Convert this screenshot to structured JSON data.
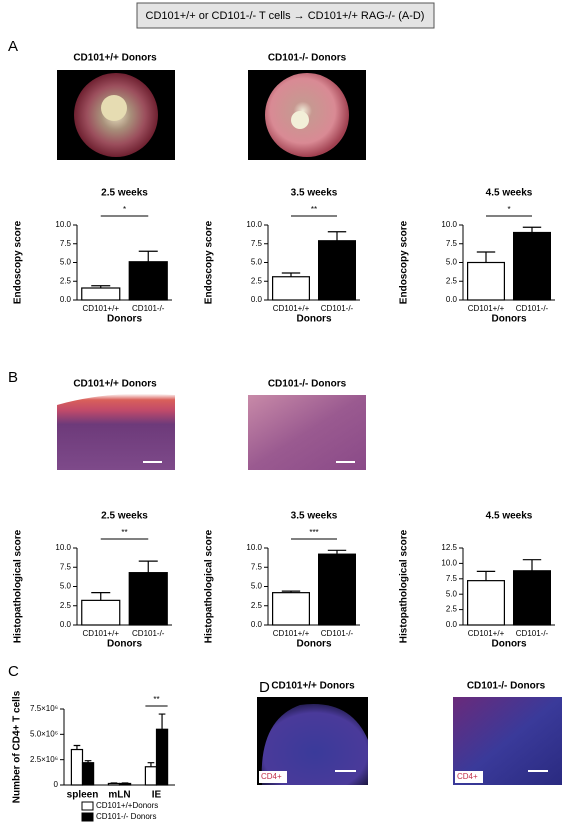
{
  "header": "CD101+/+ or CD101-/- T cells → CD101+/+ RAG-/- (A-D)",
  "panels": {
    "A": {
      "label": "A",
      "image_titles": [
        "CD101+/+ Donors",
        "CD101-/- Donors"
      ]
    },
    "B": {
      "label": "B",
      "image_titles": [
        "CD101+/+ Donors",
        "CD101-/- Donors"
      ]
    },
    "C": {
      "label": "C"
    },
    "D": {
      "label": "D",
      "image_titles": [
        "CD101+/+ Donors",
        "CD101-/- Donors"
      ],
      "stain_labels": [
        "CD4+",
        "CD4+"
      ]
    }
  },
  "chart_data": [
    {
      "type": "bar",
      "title": "2.5 weeks",
      "y_label": "Endoscopy score",
      "x_label": "Donors",
      "categories": [
        "CD101+/+",
        "CD101-/-"
      ],
      "values": [
        1.6,
        5.1
      ],
      "errors": [
        0.3,
        1.4
      ],
      "colors": [
        "#ffffff",
        "#000000"
      ],
      "ylim": [
        0,
        10
      ],
      "yticks": [
        {
          "value": 0,
          "label": "0.0"
        },
        2.5,
        {
          "value": 5,
          "label": "5.0"
        },
        7.5,
        {
          "value": 10,
          "label": "10.0"
        }
      ],
      "significance": "*"
    },
    {
      "type": "bar",
      "title": "3.5 weeks",
      "y_label": "Endoscopy score",
      "x_label": "Donors",
      "categories": [
        "CD101+/+",
        "CD101-/-"
      ],
      "values": [
        3.1,
        7.9
      ],
      "errors": [
        0.5,
        1.2
      ],
      "colors": [
        "#ffffff",
        "#000000"
      ],
      "ylim": [
        0,
        10
      ],
      "yticks": [
        {
          "value": 0,
          "label": "0.0"
        },
        2.5,
        {
          "value": 5,
          "label": "5.0"
        },
        7.5,
        {
          "value": 10,
          "label": "10.0"
        }
      ],
      "significance": "**"
    },
    {
      "type": "bar",
      "title": "4.5 weeks",
      "y_label": "Endoscopy score",
      "x_label": "Donors",
      "categories": [
        "CD101+/+",
        "CD101-/-"
      ],
      "values": [
        5.0,
        9.0
      ],
      "errors": [
        1.4,
        0.7
      ],
      "colors": [
        "#ffffff",
        "#000000"
      ],
      "ylim": [
        0,
        10
      ],
      "yticks": [
        {
          "value": 0,
          "label": "0.0"
        },
        2.5,
        {
          "value": 5,
          "label": "5.0"
        },
        7.5,
        {
          "value": 10,
          "label": "10.0"
        }
      ],
      "significance": "*"
    },
    {
      "type": "bar",
      "title": "2.5 weeks",
      "y_label": "Histopathological score",
      "x_label": "Donors",
      "categories": [
        "CD101+/+",
        "CD101-/-"
      ],
      "values": [
        3.2,
        6.8
      ],
      "errors": [
        1.0,
        1.5
      ],
      "colors": [
        "#ffffff",
        "#000000"
      ],
      "ylim": [
        0,
        10
      ],
      "yticks": [
        {
          "value": 0,
          "label": "0.0"
        },
        2.5,
        {
          "value": 5,
          "label": "5.0"
        },
        7.5,
        {
          "value": 10,
          "label": "10.0"
        }
      ],
      "significance": "**"
    },
    {
      "type": "bar",
      "title": "3.5 weeks",
      "y_label": "Histopathological score",
      "x_label": "Donors",
      "categories": [
        "CD101+/+",
        "CD101-/-"
      ],
      "values": [
        4.2,
        9.2
      ],
      "errors": [
        0.2,
        0.5
      ],
      "colors": [
        "#ffffff",
        "#000000"
      ],
      "ylim": [
        0,
        10
      ],
      "yticks": [
        {
          "value": 0,
          "label": "0.0"
        },
        2.5,
        {
          "value": 5,
          "label": "5.0"
        },
        7.5,
        {
          "value": 10,
          "label": "10.0"
        }
      ],
      "significance": "***"
    },
    {
      "type": "bar",
      "title": "4.5 weeks",
      "y_label": "Histopathological score",
      "x_label": "Donors",
      "categories": [
        "CD101+/+",
        "CD101-/-"
      ],
      "values": [
        7.2,
        8.8
      ],
      "errors": [
        1.5,
        1.8
      ],
      "colors": [
        "#ffffff",
        "#000000"
      ],
      "ylim": [
        0,
        12.5
      ],
      "yticks": [
        {
          "value": 0,
          "label": "0.0"
        },
        2.5,
        {
          "value": 5,
          "label": "5.0"
        },
        7.5,
        {
          "value": 10,
          "label": "10.0"
        },
        12.5
      ]
    },
    {
      "type": "grouped_bar",
      "y_label": "Number of CD4+ T cells",
      "categories": [
        "spleen",
        "mLN",
        "IE"
      ],
      "series": [
        {
          "name": "CD101+/+Donors",
          "color": "#ffffff",
          "values": [
            3500000,
            150000,
            1800000
          ],
          "errors": [
            400000,
            50000,
            400000
          ]
        },
        {
          "name": "CD101-/- Donors",
          "color": "#000000",
          "values": [
            2200000,
            150000,
            5500000
          ],
          "errors": [
            200000,
            50000,
            1500000
          ]
        }
      ],
      "ylim": [
        0,
        7500000
      ],
      "yticks": [
        0,
        {
          "value": 2500000,
          "label": "2.5×10⁶"
        },
        {
          "value": 5000000,
          "label": "5.0×10⁶"
        },
        {
          "value": 7500000,
          "label": "7.5×10⁶"
        }
      ],
      "significance": "**"
    }
  ]
}
